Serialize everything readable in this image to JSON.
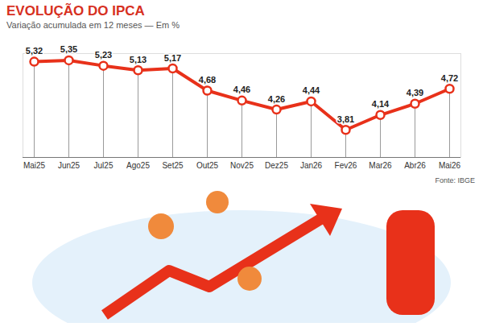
{
  "chart_data": {
    "type": "line",
    "title": "EVOLUÇÃO DO IPCA",
    "subtitle": "Variação acumulada em 12 meses — Em %",
    "source": "Fonte: IBGE",
    "categories": [
      "Mai25",
      "Jun25",
      "Jul25",
      "Ago25",
      "Set25",
      "Out25",
      "Nov25",
      "Dez25",
      "Jan26",
      "Fev26",
      "Mar26",
      "Abr26",
      "Mai26"
    ],
    "values": [
      5.32,
      5.35,
      5.23,
      5.13,
      5.17,
      4.68,
      4.46,
      4.26,
      4.44,
      3.81,
      4.14,
      4.39,
      4.72
    ],
    "value_labels": [
      "5,32",
      "5,35",
      "5,23",
      "5,13",
      "5,17",
      "4,68",
      "4,46",
      "4,26",
      "4,44",
      "3,81",
      "4,14",
      "4,39",
      "4,72"
    ],
    "color": "#e8311a",
    "marker": "circle",
    "data_labels": true,
    "tick_labels": "x",
    "ylim": [
      3.2,
      5.5
    ],
    "yticks": [],
    "grid": false
  }
}
